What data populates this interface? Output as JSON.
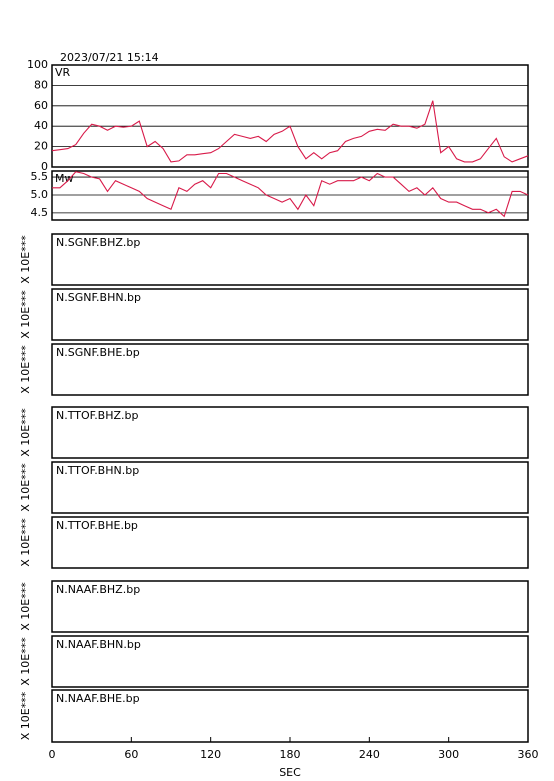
{
  "title": "2023/07/21 15:14",
  "chart_data": [
    {
      "type": "line",
      "label": "VR",
      "x": [
        0,
        6,
        12,
        18,
        24,
        30,
        36,
        42,
        48,
        54,
        60,
        66,
        72,
        78,
        84,
        90,
        96,
        102,
        108,
        114,
        120,
        126,
        132,
        138,
        144,
        150,
        156,
        162,
        168,
        174,
        180,
        186,
        192,
        198,
        204,
        210,
        216,
        222,
        228,
        234,
        240,
        246,
        252,
        258,
        264,
        270,
        276,
        282,
        288,
        294,
        300,
        306,
        312,
        318,
        324,
        330,
        336,
        342,
        348,
        354,
        360
      ],
      "series": [
        {
          "color": "#d81b4a",
          "values": [
            16,
            17,
            18,
            22,
            33,
            42,
            40,
            36,
            40,
            39,
            40,
            45,
            20,
            25,
            18,
            5,
            6,
            12,
            12,
            13,
            14,
            18,
            25,
            32,
            30,
            28,
            30,
            25,
            32,
            35,
            40,
            20,
            8,
            14,
            8,
            14,
            16,
            25,
            28,
            30,
            35,
            37,
            36,
            42,
            40,
            40,
            38,
            42,
            65,
            14,
            20,
            8,
            5,
            5,
            8,
            18,
            28,
            10,
            5,
            8,
            11
          ]
        }
      ],
      "xlim": [
        0,
        360
      ],
      "ylim": [
        0,
        100
      ],
      "yticks": [
        0,
        20,
        40,
        60,
        80,
        100
      ],
      "grid": true
    },
    {
      "type": "line",
      "label": "Mw",
      "x": [
        0,
        6,
        12,
        18,
        24,
        30,
        36,
        42,
        48,
        54,
        60,
        66,
        72,
        78,
        84,
        90,
        96,
        102,
        108,
        114,
        120,
        126,
        132,
        138,
        144,
        150,
        156,
        162,
        168,
        174,
        180,
        186,
        192,
        198,
        204,
        210,
        216,
        222,
        228,
        234,
        240,
        246,
        252,
        258,
        264,
        270,
        276,
        282,
        288,
        294,
        300,
        306,
        312,
        318,
        324,
        330,
        336,
        342,
        348,
        354,
        360
      ],
      "series": [
        {
          "color": "#d81b4a",
          "values": [
            5.2,
            5.2,
            5.4,
            5.65,
            5.6,
            5.5,
            5.45,
            5.1,
            5.4,
            5.3,
            5.2,
            5.1,
            4.9,
            4.8,
            4.7,
            4.6,
            5.2,
            5.1,
            5.3,
            5.4,
            5.2,
            5.6,
            5.6,
            5.5,
            5.4,
            5.3,
            5.2,
            5.0,
            4.9,
            4.8,
            4.9,
            4.6,
            5.0,
            4.7,
            5.4,
            5.3,
            5.4,
            5.4,
            5.4,
            5.5,
            5.4,
            5.6,
            5.5,
            5.5,
            5.3,
            5.1,
            5.2,
            5.0,
            5.2,
            4.9,
            4.8,
            4.8,
            4.7,
            4.6,
            4.6,
            4.5,
            4.6,
            4.4,
            5.1,
            5.1,
            5.0
          ]
        }
      ],
      "xlim": [
        0,
        360
      ],
      "ylim": [
        4.3,
        5.67
      ],
      "yticks": [
        4.5,
        {
          "value": 5,
          "label": "5.0"
        },
        5.5
      ],
      "grid": true
    },
    {
      "type": "waveform",
      "label": "N.SGNF.BHZ.bp",
      "ylabel": "X 10E***"
    },
    {
      "type": "waveform",
      "label": "N.SGNF.BHN.bp",
      "ylabel": "X 10E***"
    },
    {
      "type": "waveform",
      "label": "N.SGNF.BHE.bp",
      "ylabel": "X 10E***"
    },
    {
      "type": "waveform",
      "label": "N.TTOF.BHZ.bp",
      "ylabel": "X 10E***"
    },
    {
      "type": "waveform",
      "label": "N.TTOF.BHN.bp",
      "ylabel": "X 10E***"
    },
    {
      "type": "waveform",
      "label": "N.TTOF.BHE.bp",
      "ylabel": "X 10E***"
    },
    {
      "type": "waveform",
      "label": "N.NAAF.BHZ.bp",
      "ylabel": "X 10E***"
    },
    {
      "type": "waveform",
      "label": "N.NAAF.BHN.bp",
      "ylabel": "X 10E***"
    },
    {
      "type": "waveform",
      "label": "N.NAAF.BHE.bp",
      "ylabel": "X 10E***"
    }
  ],
  "x_axis": {
    "xlim": [
      0,
      360
    ],
    "xticks": [
      0,
      60,
      120,
      180,
      240,
      300,
      360
    ],
    "xlabel": "SEC"
  }
}
